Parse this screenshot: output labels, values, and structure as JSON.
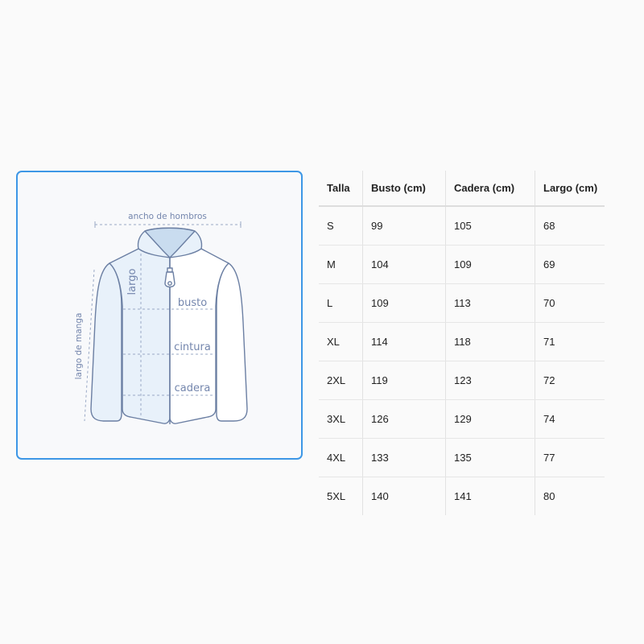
{
  "diagram": {
    "labels": {
      "shoulder_width": "ancho de hombros",
      "length": "largo",
      "bust": "busto",
      "waist": "cintura",
      "hip": "cadera",
      "sleeve_length": "largo de manga"
    },
    "colors": {
      "border": "#3d97e6",
      "outline": "#6b7fa3",
      "fill": "#e8f1fa",
      "collar": "#c9dcef"
    }
  },
  "size_table": {
    "headers": [
      "Talla",
      "Busto (cm)",
      "Cadera (cm)",
      "Largo (cm)"
    ],
    "rows": [
      [
        "S",
        "99",
        "105",
        "68"
      ],
      [
        "M",
        "104",
        "109",
        "69"
      ],
      [
        "L",
        "109",
        "113",
        "70"
      ],
      [
        "XL",
        "114",
        "118",
        "71"
      ],
      [
        "2XL",
        "119",
        "123",
        "72"
      ],
      [
        "3XL",
        "126",
        "129",
        "74"
      ],
      [
        "4XL",
        "133",
        "135",
        "77"
      ],
      [
        "5XL",
        "140",
        "141",
        "80"
      ]
    ]
  }
}
